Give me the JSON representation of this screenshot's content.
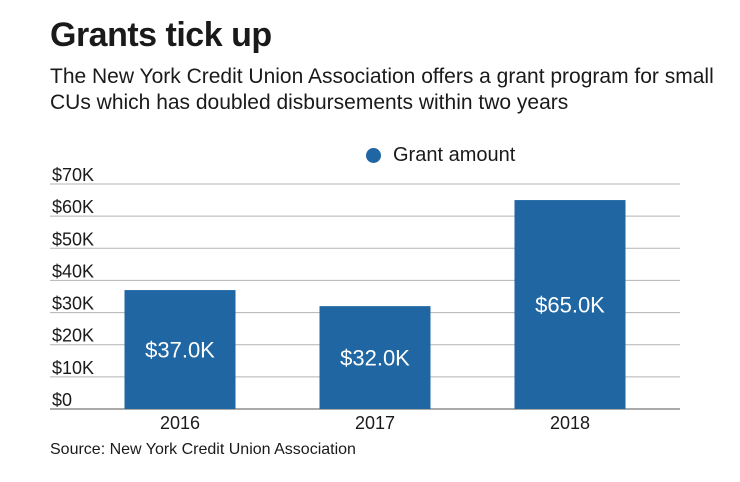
{
  "title": "Grants tick up",
  "subtitle": "The New York Credit Union Association offers a grant program for small CUs which has doubled disbursements within two years",
  "source": "Source: New York Credit Union Association",
  "colors": {
    "bar": "#1f66a2",
    "grid": "#b3b3b3",
    "axis": "#555555"
  },
  "chart_data": {
    "type": "bar",
    "categories": [
      "2016",
      "2017",
      "2018"
    ],
    "series": [
      {
        "name": "Grant amount",
        "values": [
          37000,
          32000,
          65000
        ]
      }
    ],
    "data_labels": [
      "$37.0K",
      "$32.0K",
      "$65.0K"
    ],
    "ylim": [
      0,
      70000
    ],
    "yticks": [
      0,
      10000,
      20000,
      30000,
      40000,
      50000,
      60000,
      70000
    ],
    "ytick_labels": [
      "$0",
      "$10K",
      "$20K",
      "$30K",
      "$40K",
      "$50K",
      "$60K",
      "$70K"
    ],
    "grid": true,
    "legend": "top-center"
  }
}
